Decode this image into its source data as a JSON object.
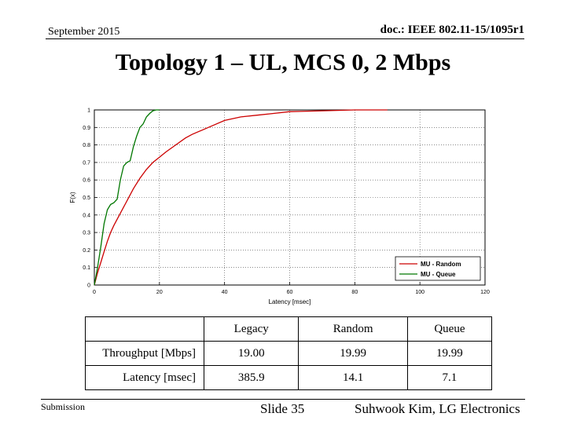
{
  "header": {
    "date": "September 2015",
    "doc": "doc.: IEEE 802.11-15/1095r1"
  },
  "title": "Topology 1 – UL, MCS 0, 2 Mbps",
  "chart_data": {
    "type": "line",
    "title": "",
    "xlabel": "Latency [msec]",
    "ylabel": "F(x)",
    "xlim": [
      0,
      120
    ],
    "ylim": [
      0,
      1
    ],
    "xticks": [
      0,
      20,
      40,
      60,
      80,
      100,
      120
    ],
    "yticks": [
      0,
      0.1,
      0.2,
      0.3,
      0.4,
      0.5,
      0.6,
      0.7,
      0.8,
      0.9,
      1
    ],
    "grid": true,
    "legend_position": "bottom-right",
    "series": [
      {
        "name": "MU - Random",
        "color": "#cc0000",
        "x": [
          0,
          1,
          2,
          3,
          4,
          5,
          6,
          8,
          10,
          12,
          14,
          16,
          18,
          20,
          22,
          25,
          28,
          30,
          35,
          40,
          45,
          50,
          55,
          60,
          70,
          80,
          90
        ],
        "y": [
          0,
          0.07,
          0.13,
          0.19,
          0.25,
          0.3,
          0.34,
          0.41,
          0.48,
          0.55,
          0.61,
          0.66,
          0.7,
          0.73,
          0.76,
          0.8,
          0.84,
          0.86,
          0.9,
          0.94,
          0.96,
          0.97,
          0.98,
          0.99,
          0.995,
          1.0,
          1.0
        ]
      },
      {
        "name": "MU - Queue",
        "color": "#007700",
        "x": [
          0,
          1,
          2,
          3,
          4,
          5,
          6,
          7,
          8,
          9,
          10,
          11,
          12,
          13,
          14,
          15,
          16,
          17,
          18,
          19,
          20
        ],
        "y": [
          0,
          0.1,
          0.22,
          0.35,
          0.43,
          0.46,
          0.47,
          0.49,
          0.6,
          0.68,
          0.7,
          0.71,
          0.79,
          0.85,
          0.9,
          0.92,
          0.96,
          0.98,
          0.995,
          1.0,
          1.0
        ]
      }
    ]
  },
  "table": {
    "headers": [
      "",
      "Legacy",
      "Random",
      "Queue"
    ],
    "rows": [
      {
        "label": "Throughput [Mbps]",
        "values": [
          "19.00",
          "19.99",
          "19.99"
        ]
      },
      {
        "label": "Latency [msec]",
        "values": [
          "385.9",
          "14.1",
          "7.1"
        ]
      }
    ]
  },
  "footer": {
    "submission": "Submission",
    "slide": "Slide 35",
    "author": "Suhwook Kim, LG Electronics"
  }
}
